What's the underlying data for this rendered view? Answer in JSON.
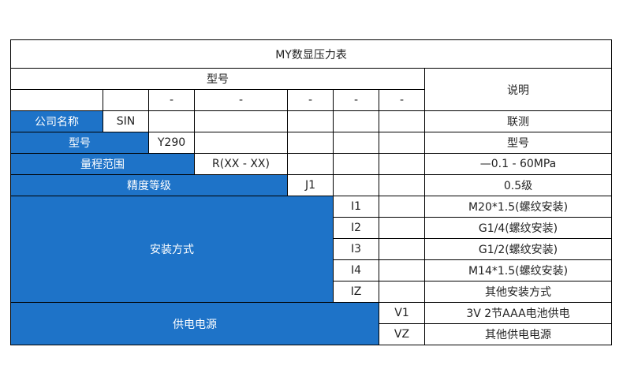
{
  "title": "MY数显压力表",
  "header": {
    "model": "型号",
    "description": "说明",
    "separators": [
      "-",
      "-",
      "-",
      "-",
      "-"
    ]
  },
  "colors": {
    "label_bg": "#1e73c8"
  },
  "rows": {
    "company": {
      "label": "公司名称",
      "code": "SIN",
      "desc": "联测"
    },
    "model": {
      "label": "型号",
      "code": "Y290",
      "desc": "型号"
    },
    "range": {
      "label": "量程范围",
      "code": "R(XX - XX)",
      "desc": "—0.1 - 60MPa"
    },
    "accuracy": {
      "label": "精度等级",
      "code": "J1",
      "desc": "0.5级"
    },
    "mounting": {
      "label": "安装方式",
      "options": [
        {
          "code": "I1",
          "desc": "M20*1.5(螺纹安装)"
        },
        {
          "code": "I2",
          "desc": "G1/4(螺纹安装)"
        },
        {
          "code": "I3",
          "desc": "G1/2(螺纹安装)"
        },
        {
          "code": "I4",
          "desc": "M14*1.5(螺纹安装)"
        },
        {
          "code": "IZ",
          "desc": "其他安装方式"
        }
      ]
    },
    "power": {
      "label": "供电电源",
      "options": [
        {
          "code": "V1",
          "desc": "3V 2节AAA电池供电"
        },
        {
          "code": "VZ",
          "desc": "其他供电电源"
        }
      ]
    }
  }
}
